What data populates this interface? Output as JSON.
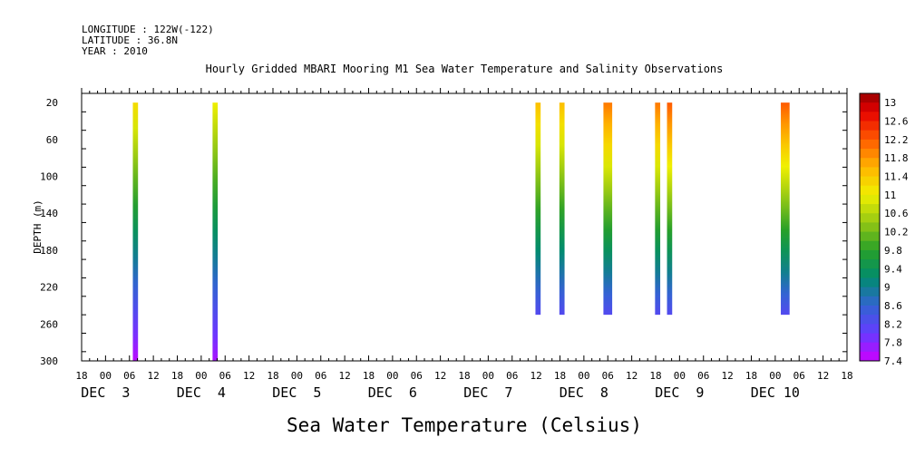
{
  "header": {
    "longitude": "LONGITUDE : 122W(-122)",
    "latitude": "LATITUDE : 36.8N",
    "year": "YEAR : 2010"
  },
  "chart_data": {
    "type": "heatmap",
    "title": "Hourly Gridded MBARI Mooring M1 Sea Water Temperature and Salinity Observations",
    "xlabel": "",
    "ylabel": "DEPTH (m)",
    "colorbar_label": "Sea Water Temperature (Celsius)",
    "x_unit": "hours since DEC 3 00:00",
    "xlim": [
      -6,
      186
    ],
    "ylim": [
      300,
      10
    ],
    "y_ticks": [
      20,
      60,
      100,
      140,
      180,
      220,
      260,
      300
    ],
    "x_hour_ticks": [
      {
        "h": -6,
        "label": "18"
      },
      {
        "h": 0,
        "label": "00"
      },
      {
        "h": 6,
        "label": "06"
      },
      {
        "h": 12,
        "label": "12"
      },
      {
        "h": 18,
        "label": "18"
      },
      {
        "h": 24,
        "label": "00"
      },
      {
        "h": 30,
        "label": "06"
      },
      {
        "h": 36,
        "label": "12"
      },
      {
        "h": 42,
        "label": "18"
      },
      {
        "h": 48,
        "label": "00"
      },
      {
        "h": 54,
        "label": "06"
      },
      {
        "h": 60,
        "label": "12"
      },
      {
        "h": 66,
        "label": "18"
      },
      {
        "h": 72,
        "label": "00"
      },
      {
        "h": 78,
        "label": "06"
      },
      {
        "h": 84,
        "label": "12"
      },
      {
        "h": 90,
        "label": "18"
      },
      {
        "h": 96,
        "label": "00"
      },
      {
        "h": 102,
        "label": "06"
      },
      {
        "h": 108,
        "label": "12"
      },
      {
        "h": 114,
        "label": "18"
      },
      {
        "h": 120,
        "label": "00"
      },
      {
        "h": 126,
        "label": "06"
      },
      {
        "h": 132,
        "label": "12"
      },
      {
        "h": 138,
        "label": "18"
      },
      {
        "h": 144,
        "label": "00"
      },
      {
        "h": 150,
        "label": "06"
      },
      {
        "h": 156,
        "label": "12"
      },
      {
        "h": 162,
        "label": "18"
      },
      {
        "h": 168,
        "label": "00"
      },
      {
        "h": 174,
        "label": "06"
      },
      {
        "h": 180,
        "label": "12"
      },
      {
        "h": 186,
        "label": "18"
      }
    ],
    "x_day_labels": [
      {
        "h": 0,
        "label": "DEC  3"
      },
      {
        "h": 24,
        "label": "DEC  4"
      },
      {
        "h": 48,
        "label": "DEC  5"
      },
      {
        "h": 72,
        "label": "DEC  6"
      },
      {
        "h": 96,
        "label": "DEC  7"
      },
      {
        "h": 120,
        "label": "DEC  8"
      },
      {
        "h": 144,
        "label": "DEC  9"
      },
      {
        "h": 168,
        "label": "DEC 10"
      }
    ],
    "colorbar": {
      "min": 7.4,
      "max": 13.2,
      "step": 0.2,
      "tick_labels": [
        "13",
        "12.6",
        "12.2",
        "11.8",
        "11.4",
        "11",
        "10.6",
        "10.2",
        "9.8",
        "9.4",
        "9",
        "8.6",
        "8.2",
        "7.8",
        "7.4"
      ]
    },
    "profiles": [
      {
        "time_h": 7.5,
        "width_h": 1.3,
        "depth_top": 20,
        "depth_bottom": 300,
        "temp_top": 11.2,
        "temp_bottom": 7.5
      },
      {
        "time_h": 27.5,
        "width_h": 1.3,
        "depth_top": 20,
        "depth_bottom": 300,
        "temp_top": 11.0,
        "temp_bottom": 7.6
      },
      {
        "time_h": 108.5,
        "width_h": 1.3,
        "depth_top": 20,
        "depth_bottom": 250,
        "temp_top": 11.5,
        "temp_bottom": 8.2
      },
      {
        "time_h": 114.5,
        "width_h": 1.3,
        "depth_top": 20,
        "depth_bottom": 250,
        "temp_top": 11.5,
        "temp_bottom": 8.2
      },
      {
        "time_h": 126.0,
        "width_h": 2.2,
        "depth_top": 20,
        "depth_bottom": 250,
        "temp_top": 12.0,
        "temp_bottom": 8.2
      },
      {
        "time_h": 138.5,
        "width_h": 1.3,
        "depth_top": 20,
        "depth_bottom": 250,
        "temp_top": 12.0,
        "temp_bottom": 8.2
      },
      {
        "time_h": 141.5,
        "width_h": 1.3,
        "depth_top": 20,
        "depth_bottom": 250,
        "temp_top": 12.2,
        "temp_bottom": 8.2
      },
      {
        "time_h": 170.5,
        "width_h": 2.2,
        "depth_top": 20,
        "depth_bottom": 250,
        "temp_top": 12.2,
        "temp_bottom": 8.2
      }
    ]
  }
}
